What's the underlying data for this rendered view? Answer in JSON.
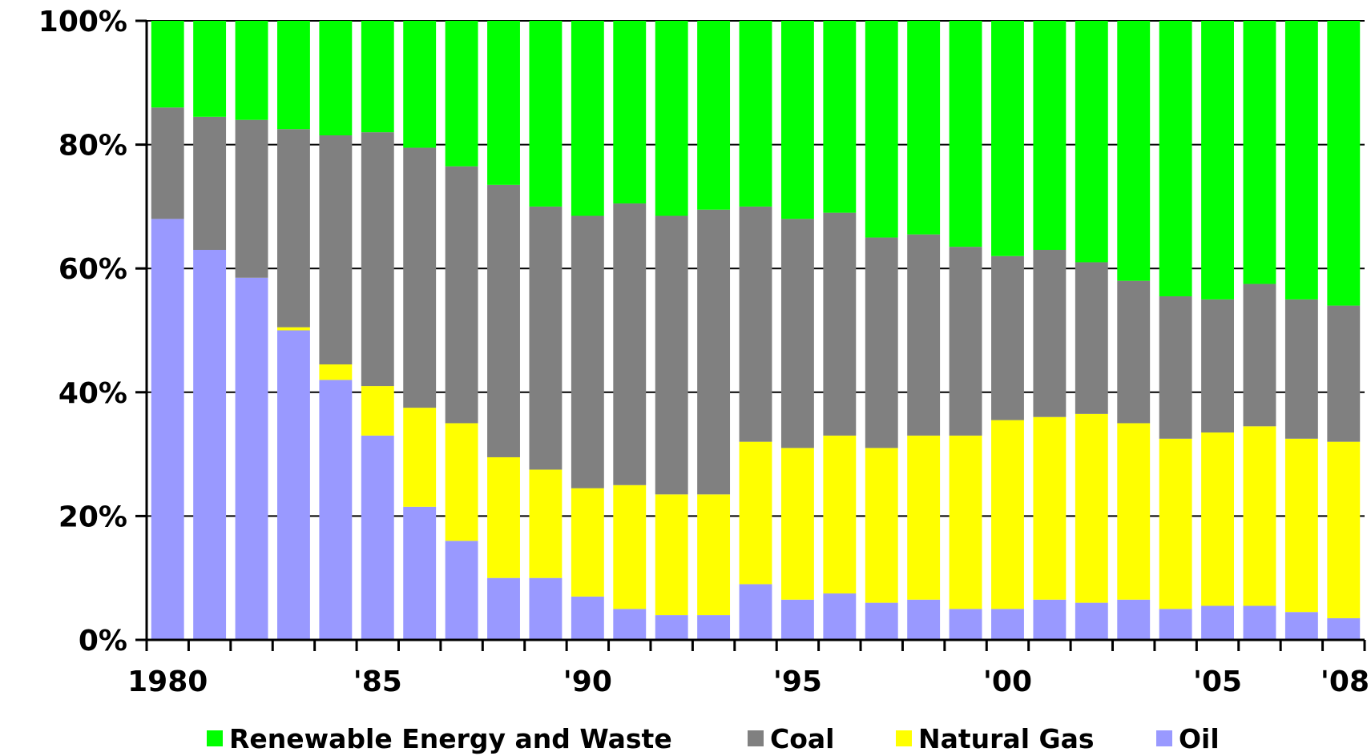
{
  "chart_data": {
    "type": "bar",
    "stacked": true,
    "percent_stacked": true,
    "categories": [
      "1980",
      "1981",
      "1982",
      "1983",
      "1984",
      "1985",
      "1986",
      "1987",
      "1988",
      "1989",
      "1990",
      "1991",
      "1992",
      "1993",
      "1994",
      "1995",
      "1996",
      "1997",
      "1998",
      "1999",
      "2000",
      "2001",
      "2002",
      "2003",
      "2004",
      "2005",
      "2006",
      "2007",
      "2008"
    ],
    "x_tick_labels": [
      {
        "category": "1980",
        "label": "1980"
      },
      {
        "category": "1985",
        "label": "'85"
      },
      {
        "category": "1990",
        "label": "'90"
      },
      {
        "category": "1995",
        "label": "'95"
      },
      {
        "category": "2000",
        "label": "'00"
      },
      {
        "category": "2005",
        "label": "'05"
      },
      {
        "category": "2008",
        "label": "'08"
      }
    ],
    "series": [
      {
        "name": "Oil",
        "color": "#9999ff",
        "values": [
          68,
          63,
          58.5,
          50,
          42,
          33,
          21.5,
          16,
          10,
          10,
          7,
          5,
          4,
          4,
          9,
          6.5,
          7.5,
          6,
          6.5,
          5,
          5,
          6.5,
          6,
          6.5,
          5,
          5.5,
          5.5,
          4.5,
          3.5
        ]
      },
      {
        "name": "Natural Gas",
        "color": "#ffff00",
        "values": [
          0,
          0,
          0,
          0.5,
          2.5,
          8,
          16,
          19,
          19.5,
          17.5,
          17.5,
          20,
          19.5,
          19.5,
          23,
          24.5,
          25.5,
          25,
          26.5,
          28,
          30.5,
          29.5,
          30.5,
          28.5,
          27.5,
          28,
          29,
          28,
          28.5
        ]
      },
      {
        "name": "Coal",
        "color": "#808080",
        "values": [
          18,
          21.5,
          25.5,
          32,
          37,
          41,
          42,
          41.5,
          44,
          42.5,
          44,
          45.5,
          45,
          46,
          38,
          37,
          36,
          34,
          32.5,
          30.5,
          26.5,
          27,
          24.5,
          23,
          23,
          21.5,
          23,
          22.5,
          22
        ]
      },
      {
        "name": "Renewable Energy and Waste",
        "color": "#00ff00",
        "values": [
          14,
          15.5,
          16,
          17.5,
          18.5,
          18,
          20.5,
          23.5,
          26.5,
          30,
          31.5,
          29.5,
          31.5,
          30.5,
          30,
          32,
          31,
          35,
          34.5,
          36.5,
          38,
          37,
          39,
          42,
          44.5,
          45,
          42.5,
          45,
          46
        ]
      }
    ],
    "y_tick_labels": [
      "0%",
      "20%",
      "40%",
      "60%",
      "80%",
      "100%"
    ],
    "ylim": [
      0,
      100
    ],
    "grid": true,
    "legend": {
      "position": "bottom",
      "order": [
        "Renewable Energy and Waste",
        "Coal",
        "Natural Gas",
        "Oil"
      ]
    },
    "title": "",
    "xlabel": "",
    "ylabel": ""
  }
}
